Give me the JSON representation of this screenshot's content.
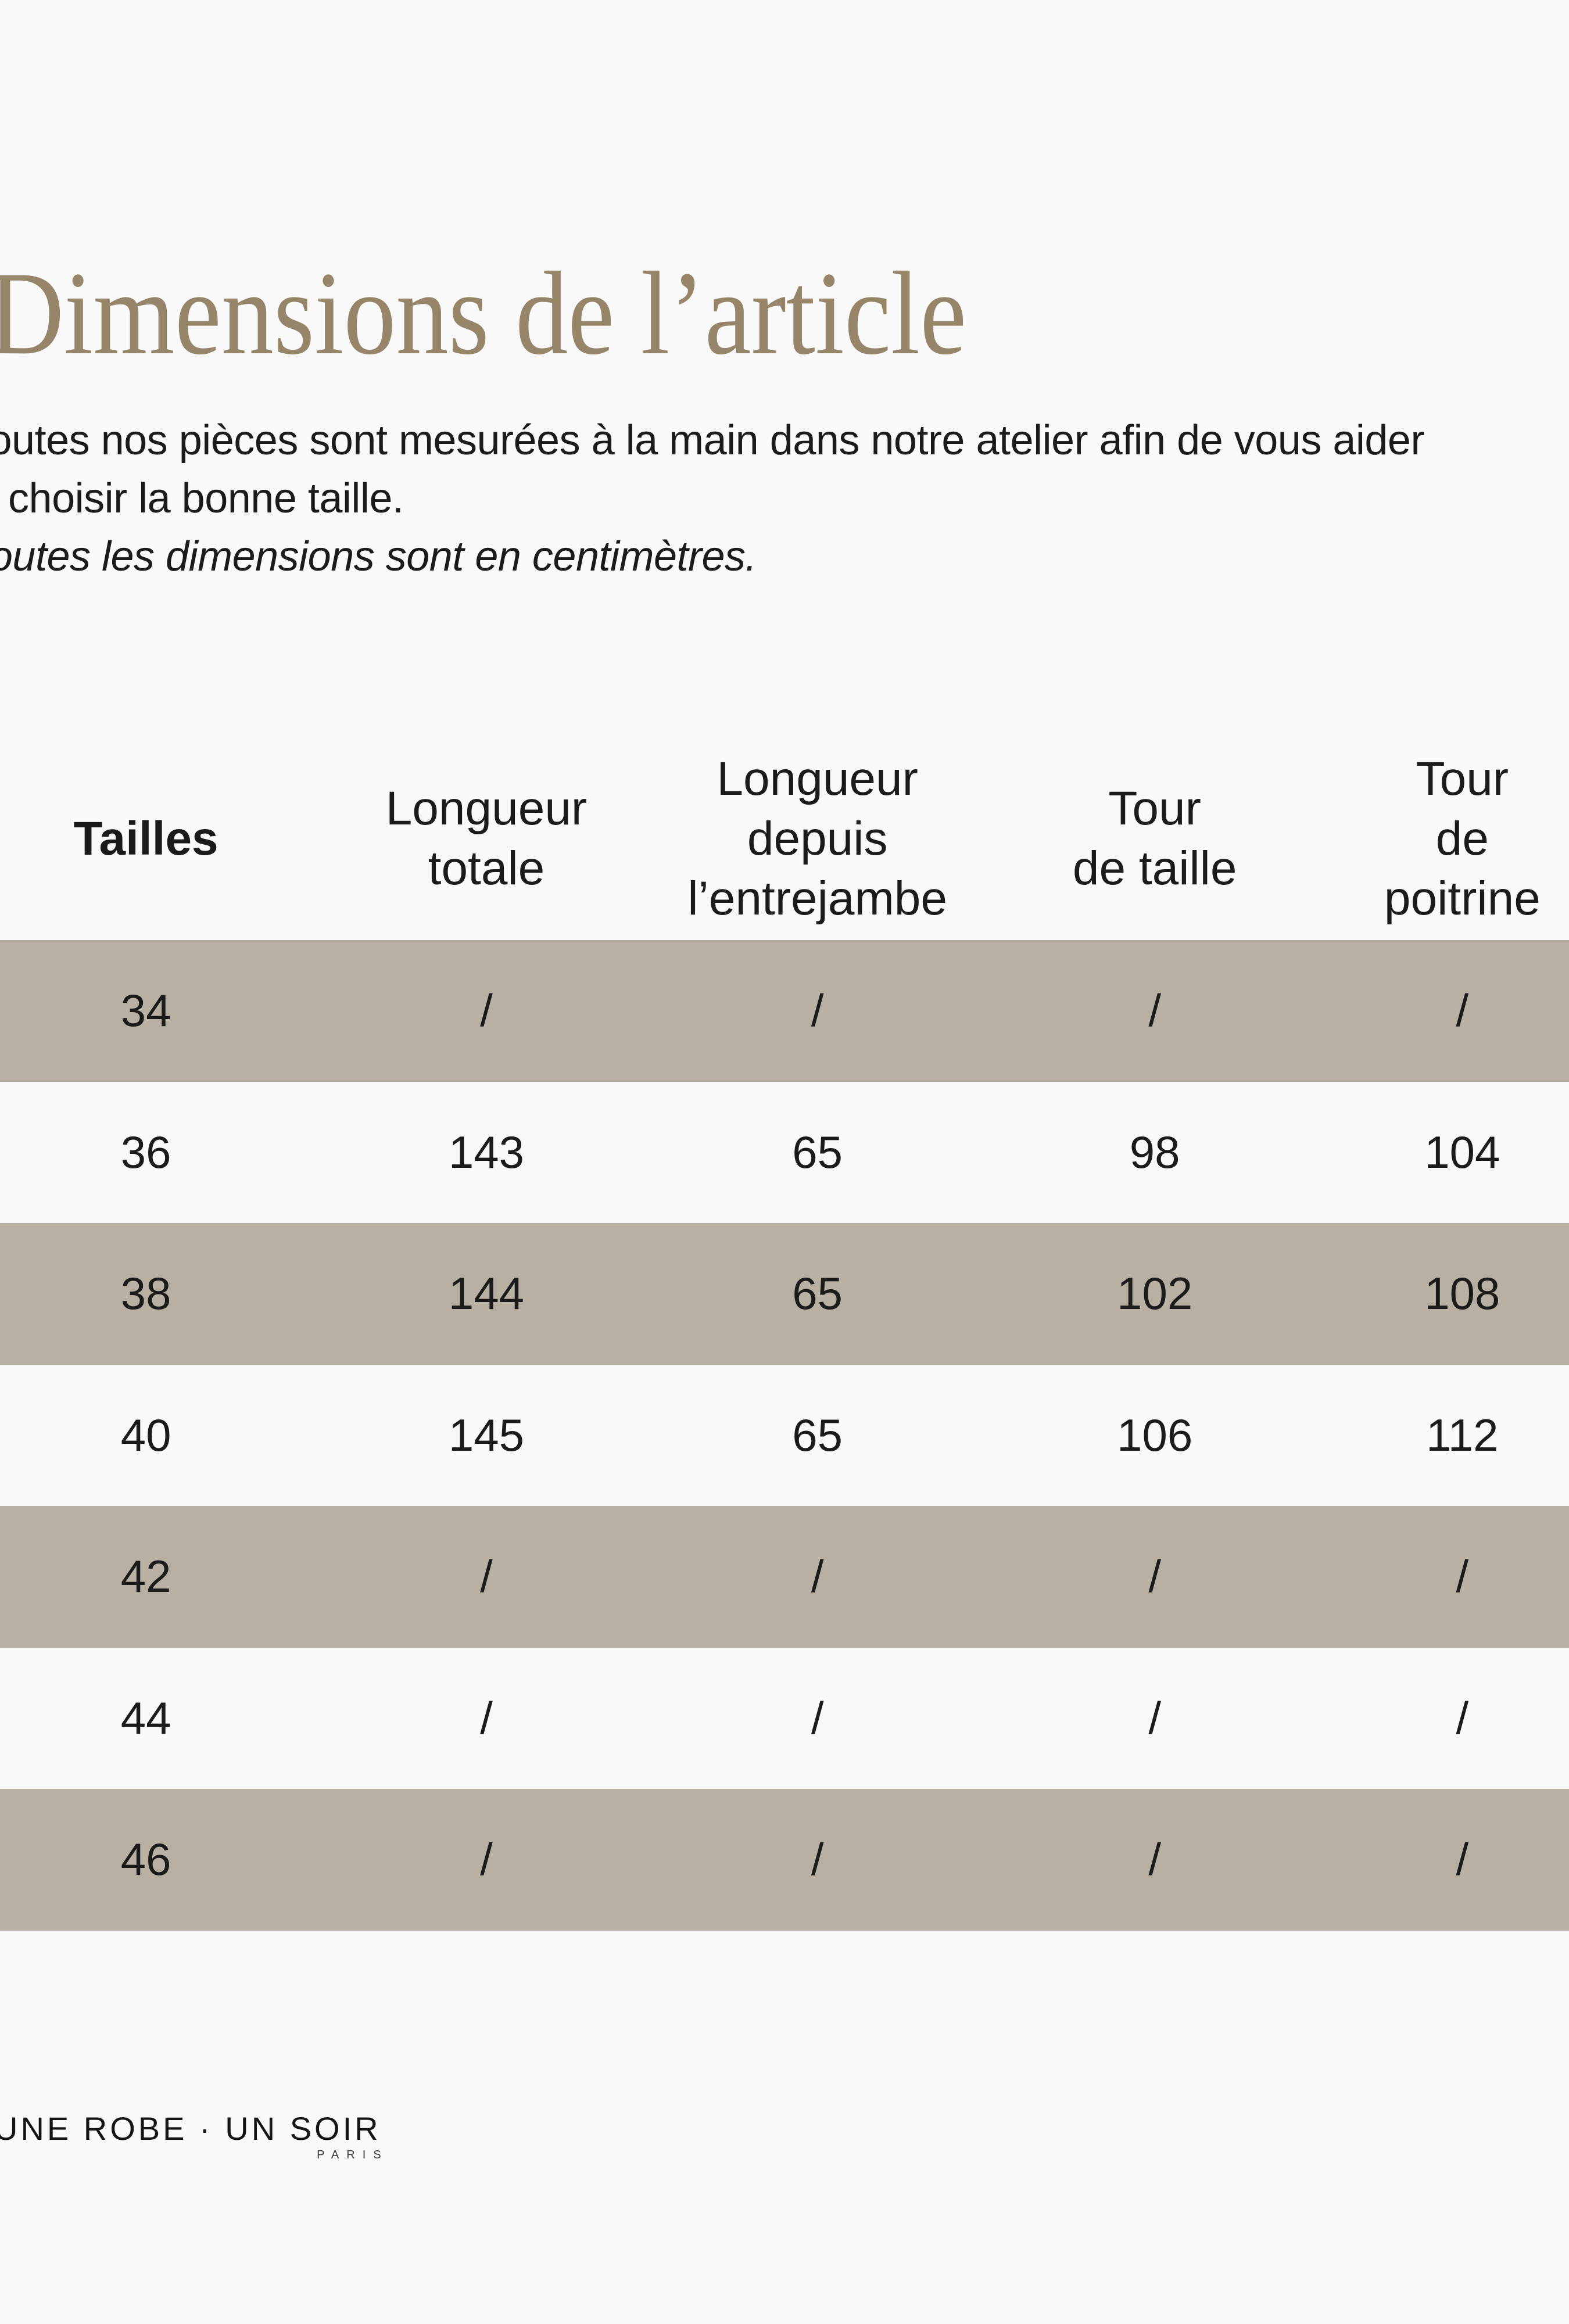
{
  "page": {
    "background_color": "#f9f9f9",
    "shaded_row_color": "#b8b1a3",
    "title_color": "#978569",
    "text_color": "#1b1b1b"
  },
  "header": {
    "title": "Dimensions de l’article",
    "intro_line1": "Toutes nos pièces sont mesurées à la main dans notre atelier afin de vous aider",
    "intro_line2": "à choisir la bonne taille.",
    "note": "Toutes les dimensions sont en centimètres."
  },
  "table": {
    "columns": [
      {
        "label": "Tailles"
      },
      {
        "label": "Longueur\ntotale"
      },
      {
        "label": "Longueur\ndepuis\nl’entrejambe"
      },
      {
        "label": "Tour\nde taille"
      },
      {
        "label": "Tour\nde poitrine"
      }
    ],
    "rows": [
      {
        "size": "34",
        "cells": [
          "/",
          "/",
          "/",
          "/"
        ]
      },
      {
        "size": "36",
        "cells": [
          "143",
          "65",
          "98",
          "104"
        ]
      },
      {
        "size": "38",
        "cells": [
          "144",
          "65",
          "102",
          "108"
        ]
      },
      {
        "size": "40",
        "cells": [
          "145",
          "65",
          "106",
          "112"
        ]
      },
      {
        "size": "42",
        "cells": [
          "/",
          "/",
          "/",
          "/"
        ]
      },
      {
        "size": "44",
        "cells": [
          "/",
          "/",
          "/",
          "/"
        ]
      },
      {
        "size": "46",
        "cells": [
          "/",
          "/",
          "/",
          "/"
        ]
      }
    ]
  },
  "footer": {
    "brand": "UNE ROBE · UN SOIR",
    "brand_city": "PARIS"
  }
}
